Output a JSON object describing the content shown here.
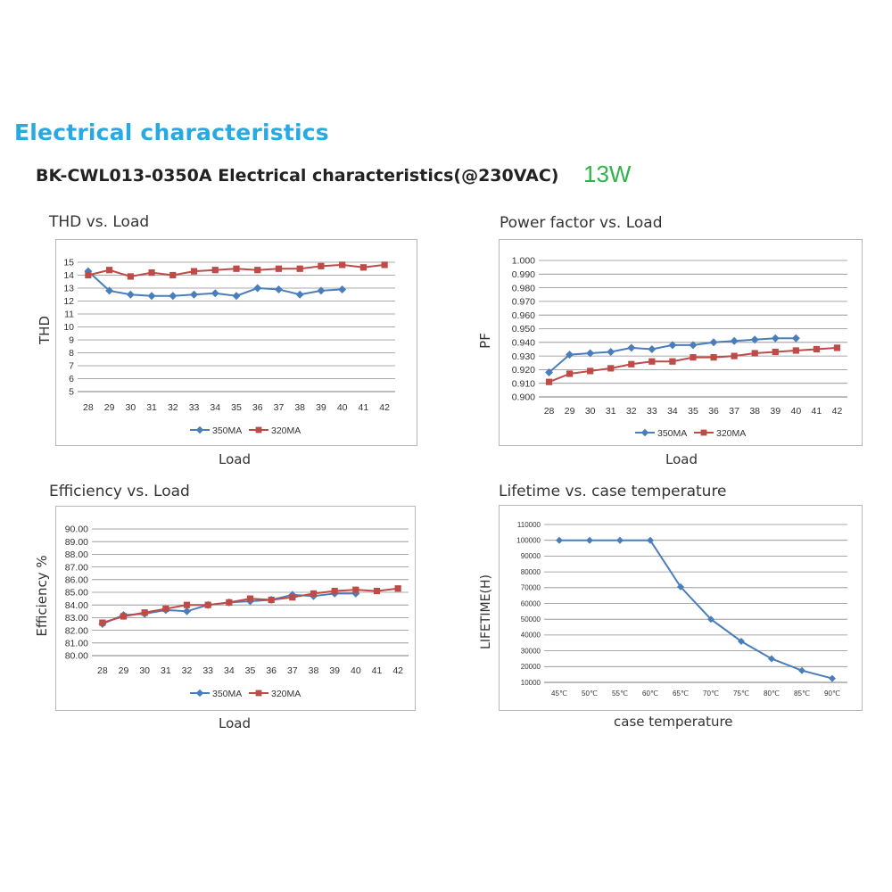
{
  "page": {
    "section_title": "Electrical characteristics",
    "subtitle": "BK-CWL013-0350A Electrical characteristics(@230VAC)",
    "wattage": "13W"
  },
  "colors": {
    "series_350": "#4a7ebb",
    "series_320": "#be4b48",
    "lifetime_line": "#4a7ebb",
    "grid": "#8c8c8c",
    "section_title": "#29a9e0",
    "wattage": "#2fb34a"
  },
  "chart_data": [
    {
      "id": "thd",
      "type": "line",
      "title": "THD vs. Load",
      "xlabel": "Load",
      "ylabel": "THD",
      "categories": [
        "28",
        "29",
        "30",
        "31",
        "32",
        "33",
        "34",
        "35",
        "36",
        "37",
        "38",
        "39",
        "40",
        "41",
        "42"
      ],
      "yticks": [
        "5",
        "6",
        "7",
        "8",
        "9",
        "10",
        "11",
        "12",
        "13",
        "14",
        "15"
      ],
      "ylim": [
        5,
        15
      ],
      "grid": true,
      "legend_position": "bottom",
      "series": [
        {
          "name": "350MA",
          "marker": "diamond",
          "values": [
            14.3,
            12.8,
            12.5,
            12.4,
            12.4,
            12.5,
            12.6,
            12.4,
            13.0,
            12.9,
            12.5,
            12.8,
            12.9,
            null,
            null
          ]
        },
        {
          "name": "320MA",
          "marker": "square",
          "values": [
            14.0,
            14.4,
            13.9,
            14.2,
            14.0,
            14.3,
            14.4,
            14.5,
            14.4,
            14.5,
            14.5,
            14.7,
            14.8,
            14.6,
            14.8
          ]
        }
      ]
    },
    {
      "id": "pf",
      "type": "line",
      "title": "Power factor vs. Load",
      "xlabel": "Load",
      "ylabel": "PF",
      "categories": [
        "28",
        "29",
        "30",
        "31",
        "32",
        "33",
        "34",
        "35",
        "36",
        "37",
        "38",
        "39",
        "40",
        "41",
        "42"
      ],
      "yticks": [
        "0.900",
        "0.910",
        "0.920",
        "0.930",
        "0.940",
        "0.950",
        "0.960",
        "0.970",
        "0.980",
        "0.990",
        "1.000"
      ],
      "ylim": [
        0.9,
        1.0
      ],
      "grid": true,
      "legend_position": "bottom",
      "series": [
        {
          "name": "350MA",
          "marker": "diamond",
          "values": [
            0.918,
            0.931,
            0.932,
            0.933,
            0.936,
            0.935,
            0.938,
            0.938,
            0.94,
            0.941,
            0.942,
            0.943,
            0.943,
            null,
            null
          ]
        },
        {
          "name": "320MA",
          "marker": "square",
          "values": [
            0.911,
            0.917,
            0.919,
            0.921,
            0.924,
            0.926,
            0.926,
            0.929,
            0.929,
            0.93,
            0.932,
            0.933,
            0.934,
            0.935,
            0.936
          ]
        }
      ]
    },
    {
      "id": "eff",
      "type": "line",
      "title": "Efficiency vs. Load",
      "xlabel": "Load",
      "ylabel": "Efficiency %",
      "categories": [
        "28",
        "29",
        "30",
        "31",
        "32",
        "33",
        "34",
        "35",
        "36",
        "37",
        "38",
        "39",
        "40",
        "41",
        "42"
      ],
      "yticks": [
        "80.00",
        "81.00",
        "82.00",
        "83.00",
        "84.00",
        "85.00",
        "86.00",
        "87.00",
        "88.00",
        "89.00",
        "90.00"
      ],
      "ylim": [
        80,
        90
      ],
      "grid": true,
      "legend_position": "bottom",
      "series": [
        {
          "name": "350MA",
          "marker": "diamond",
          "values": [
            82.5,
            83.2,
            83.3,
            83.6,
            83.5,
            84.0,
            84.2,
            84.3,
            84.4,
            84.8,
            84.7,
            84.9,
            84.9,
            null,
            null
          ]
        },
        {
          "name": "320MA",
          "marker": "square",
          "values": [
            82.6,
            83.1,
            83.4,
            83.7,
            84.0,
            84.0,
            84.2,
            84.5,
            84.4,
            84.6,
            84.9,
            85.1,
            85.2,
            85.1,
            85.3
          ]
        }
      ]
    },
    {
      "id": "life",
      "type": "line",
      "title": "Lifetime vs. case temperature",
      "xlabel": "case temperature",
      "ylabel": "LIFETIME(H)",
      "categories": [
        "45℃",
        "50℃",
        "55℃",
        "60℃",
        "65℃",
        "70℃",
        "75℃",
        "80℃",
        "85℃",
        "90℃"
      ],
      "yticks": [
        "10000",
        "20000",
        "30000",
        "40000",
        "50000",
        "60000",
        "70000",
        "80000",
        "90000",
        "100000",
        "110000"
      ],
      "ylim": [
        10000,
        110000
      ],
      "grid": true,
      "series": [
        {
          "marker": "diamond",
          "values": [
            100000,
            100000,
            100000,
            100000,
            70500,
            50000,
            36000,
            25000,
            17500,
            12500
          ]
        }
      ]
    }
  ]
}
